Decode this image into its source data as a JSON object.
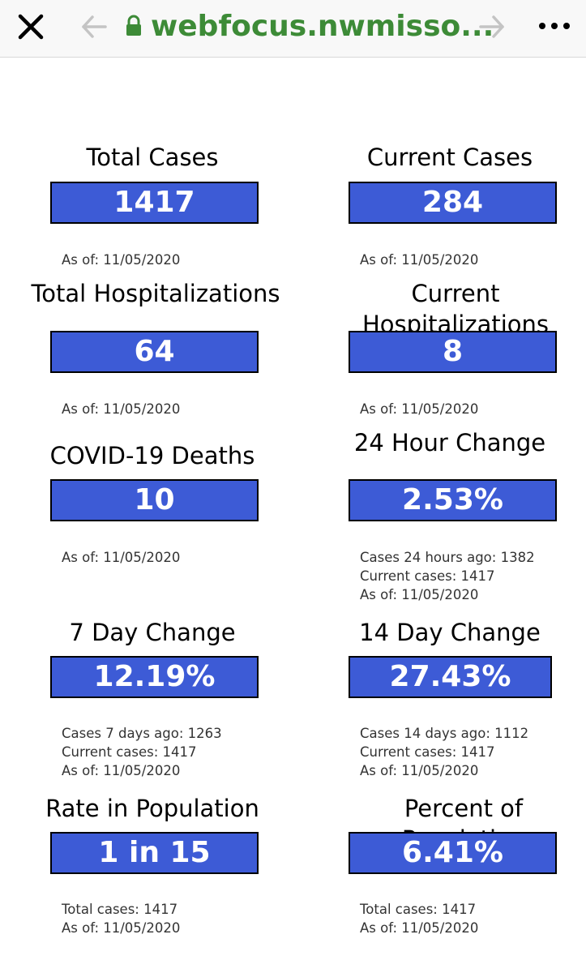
{
  "browser": {
    "url_text": "webfocus.nwmisso...",
    "icons": [
      "close-icon",
      "back-arrow-icon",
      "lock-icon",
      "forward-arrow-icon",
      "more-icon"
    ]
  },
  "colors": {
    "value_box_bg": "#3d5bd6",
    "url_green": "#3d8b37"
  },
  "cards": {
    "total_cases": {
      "title": "Total Cases",
      "value": "1417",
      "notes": [
        "As of: 11/05/2020"
      ]
    },
    "current_cases": {
      "title": "Current Cases",
      "value": "284",
      "notes": [
        "As of: 11/05/2020"
      ]
    },
    "total_hosp": {
      "title": "Total Hospitalizations",
      "value": "64",
      "notes": [
        "As of: 11/05/2020"
      ]
    },
    "current_hosp": {
      "title_line1": "Current",
      "title_line2": "Hospitalizations",
      "value": "8",
      "notes": [
        "As of: 11/05/2020"
      ]
    },
    "deaths": {
      "title": "COVID-19 Deaths",
      "value": "10",
      "notes": [
        "As of: 11/05/2020"
      ]
    },
    "change_24h": {
      "title": "24 Hour Change",
      "value": "2.53%",
      "notes": [
        "Cases 24 hours ago: 1382",
        "Current cases: 1417",
        "As of: 11/05/2020"
      ]
    },
    "change_7d": {
      "title": "7 Day Change",
      "value": "12.19%",
      "notes": [
        "Cases 7 days ago: 1263",
        "Current cases: 1417",
        "As of: 11/05/2020"
      ]
    },
    "change_14d": {
      "title": "14 Day Change",
      "value": "27.43%",
      "notes": [
        "Cases 14 days ago: 1112",
        "Current cases: 1417",
        "As of: 11/05/2020"
      ]
    },
    "rate_pop": {
      "title": "Rate in Population",
      "value": "1 in 15",
      "notes": [
        "Total cases: 1417",
        "As of: 11/05/2020"
      ]
    },
    "percent_pop": {
      "title_line1": "Percent of",
      "title_line2": "Population",
      "value": "6.41%",
      "notes": [
        "Total cases: 1417",
        "As of: 11/05/2020"
      ]
    }
  }
}
